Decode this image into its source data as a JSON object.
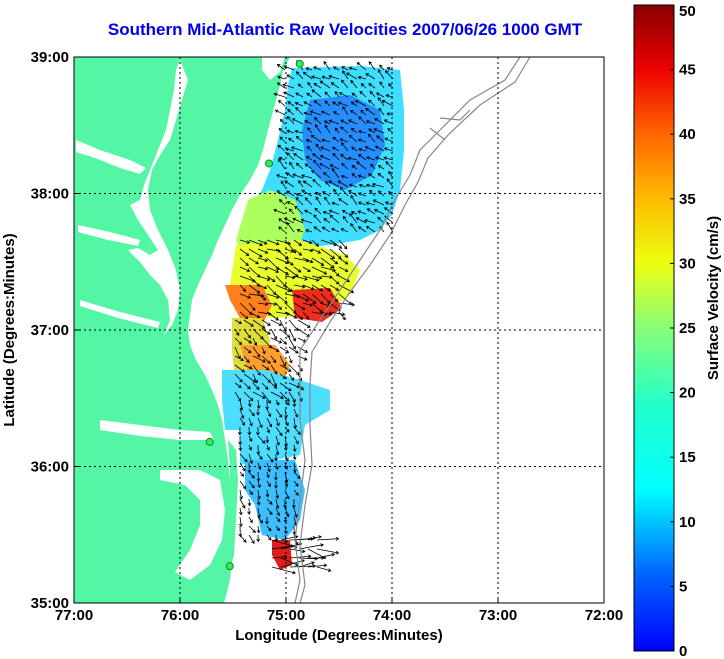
{
  "title": "Southern Mid-Atlantic Raw Velocities 2007/06/26 1000 GMT",
  "axes": {
    "xlabel": "Longitude (Degrees:Minutes)",
    "ylabel": "Latitude (Degrees:Minutes)",
    "x_ticks": [
      "77:00",
      "76:00",
      "75:00",
      "74:00",
      "73:00",
      "72:00"
    ],
    "y_ticks": [
      "39:00",
      "38:00",
      "37:00",
      "36:00",
      "35:00"
    ],
    "xlim": [
      -77,
      -72
    ],
    "ylim": [
      35,
      39
    ]
  },
  "colorbar": {
    "label": "Surface Velocity (cm/s)",
    "ticks": [
      "50",
      "45",
      "40",
      "35",
      "30",
      "25",
      "20",
      "15",
      "10",
      "5",
      "0"
    ],
    "range": [
      0,
      50
    ]
  },
  "colors": {
    "land": "#55f5a6",
    "title": "#0000ee",
    "station": "#33ee55",
    "bathymetry": "#888888"
  },
  "stations": [
    {
      "lon": -74.87,
      "lat": 38.95
    },
    {
      "lon": -75.16,
      "lat": 38.22
    },
    {
      "lon": -75.72,
      "lat": 36.18
    },
    {
      "lon": -75.53,
      "lat": 35.27
    }
  ]
}
